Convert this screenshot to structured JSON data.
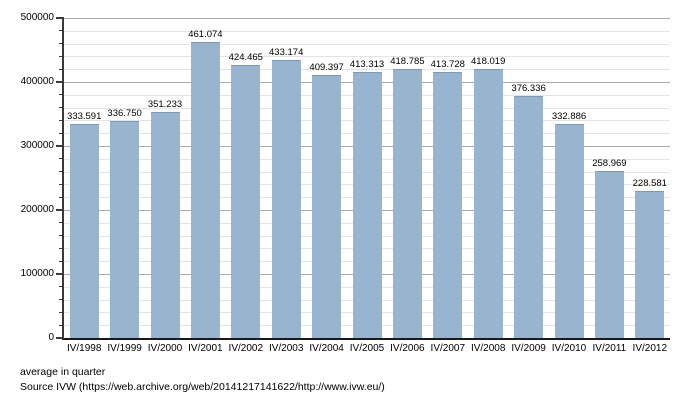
{
  "chart_data": {
    "type": "bar",
    "title": "",
    "xlabel": "",
    "ylabel": "",
    "categories": [
      "IV/1998",
      "IV/1999",
      "IV/2000",
      "IV/2001",
      "IV/2002",
      "IV/2003",
      "IV/2004",
      "IV/2005",
      "IV/2006",
      "IV/2007",
      "IV/2008",
      "IV/2009",
      "IV/2010",
      "IV/2011",
      "IV/2012"
    ],
    "values": [
      333591,
      336750,
      351233,
      461074,
      424465,
      433174,
      409397,
      413313,
      418785,
      413728,
      418019,
      376336,
      332886,
      258969,
      228581
    ],
    "value_labels": [
      "333.591",
      "336.750",
      "351.233",
      "461.074",
      "424.465",
      "433.174",
      "409.397",
      "413.313",
      "418.785",
      "413.728",
      "418.019",
      "376.336",
      "332.886",
      "258.969",
      "228.581"
    ],
    "ylim": [
      0,
      500000
    ],
    "y_major_step": 100000,
    "y_minor_step": 20000,
    "y_tick_labels": [
      "0",
      "100000",
      "200000",
      "300000",
      "400000",
      "500000"
    ],
    "grid": "horizontal, minor and major gridlines, legend off",
    "bar_color": "#98b4ce",
    "bar_edge_color": "#7e9ab4",
    "major_grid_color": "#ababab",
    "minor_grid_color": "#e4e4e4"
  },
  "footer": {
    "caption": "average in quarter",
    "source": "Source IVW (https://web.archive.org/web/20141217141622/http://www.ivw.eu/)"
  }
}
